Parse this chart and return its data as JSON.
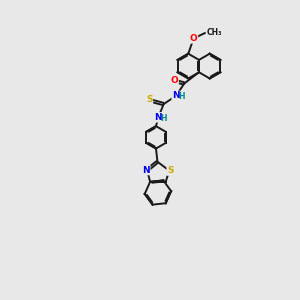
{
  "background_color": "#e8e8e8",
  "bond_color": "#1a1a1a",
  "figsize": [
    3.0,
    3.0
  ],
  "dpi": 100,
  "atom_colors": {
    "O": "#ff0000",
    "N": "#0000ee",
    "S": "#ccaa00",
    "H": "#008888"
  },
  "lw": 1.4,
  "r_hex": 0.42,
  "r_benz": 0.38
}
